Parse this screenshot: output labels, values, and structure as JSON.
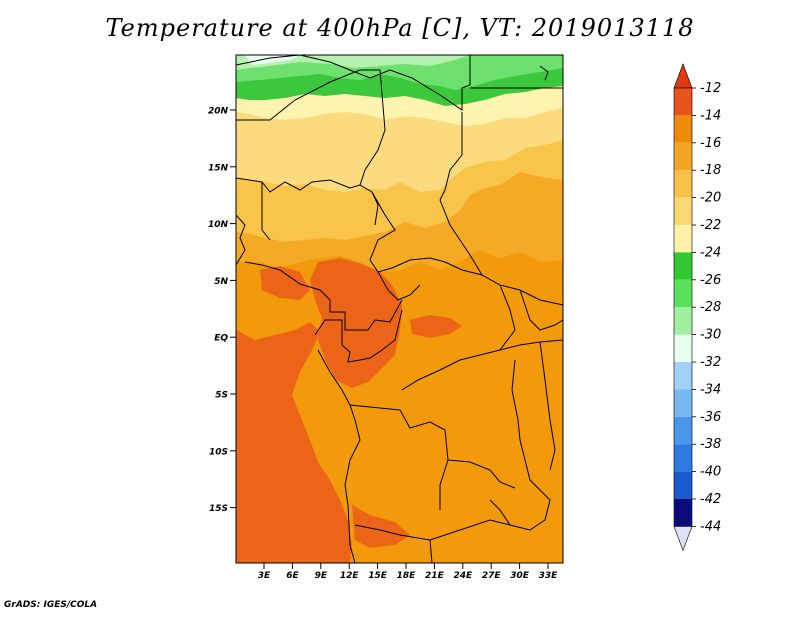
{
  "title": "Temperature at 400hPa [C], VT: 2019013118",
  "credit": "GrADS: IGES/COLA",
  "map": {
    "lat_labels": [
      "20N",
      "15N",
      "10N",
      "5N",
      "EQ",
      "5S",
      "10S",
      "15S"
    ],
    "lon_labels": [
      "3E",
      "6E",
      "9E",
      "12E",
      "15E",
      "18E",
      "21E",
      "24E",
      "27E",
      "30E",
      "33E"
    ]
  },
  "colorbar": {
    "labels": [
      "-12",
      "-14",
      "-16",
      "-18",
      "-20",
      "-22",
      "-24",
      "-26",
      "-28",
      "-30",
      "-32",
      "-34",
      "-36",
      "-38",
      "-40",
      "-42",
      "-44"
    ],
    "colors": [
      "#e8541e",
      "#f08a0a",
      "#f5a524",
      "#f8c248",
      "#fbd873",
      "#fff1a8",
      "#32c832",
      "#5ae05a",
      "#a0f0a0",
      "#e8fff0",
      "#a0d2f8",
      "#78b8f0",
      "#4a96e8",
      "#2f7ae0",
      "#1c5ad0",
      "#0b3cb8",
      "#0a0a78"
    ],
    "top_arrow_color": "#e03a10",
    "bottom_arrow_color": "#e0e0f8"
  }
}
